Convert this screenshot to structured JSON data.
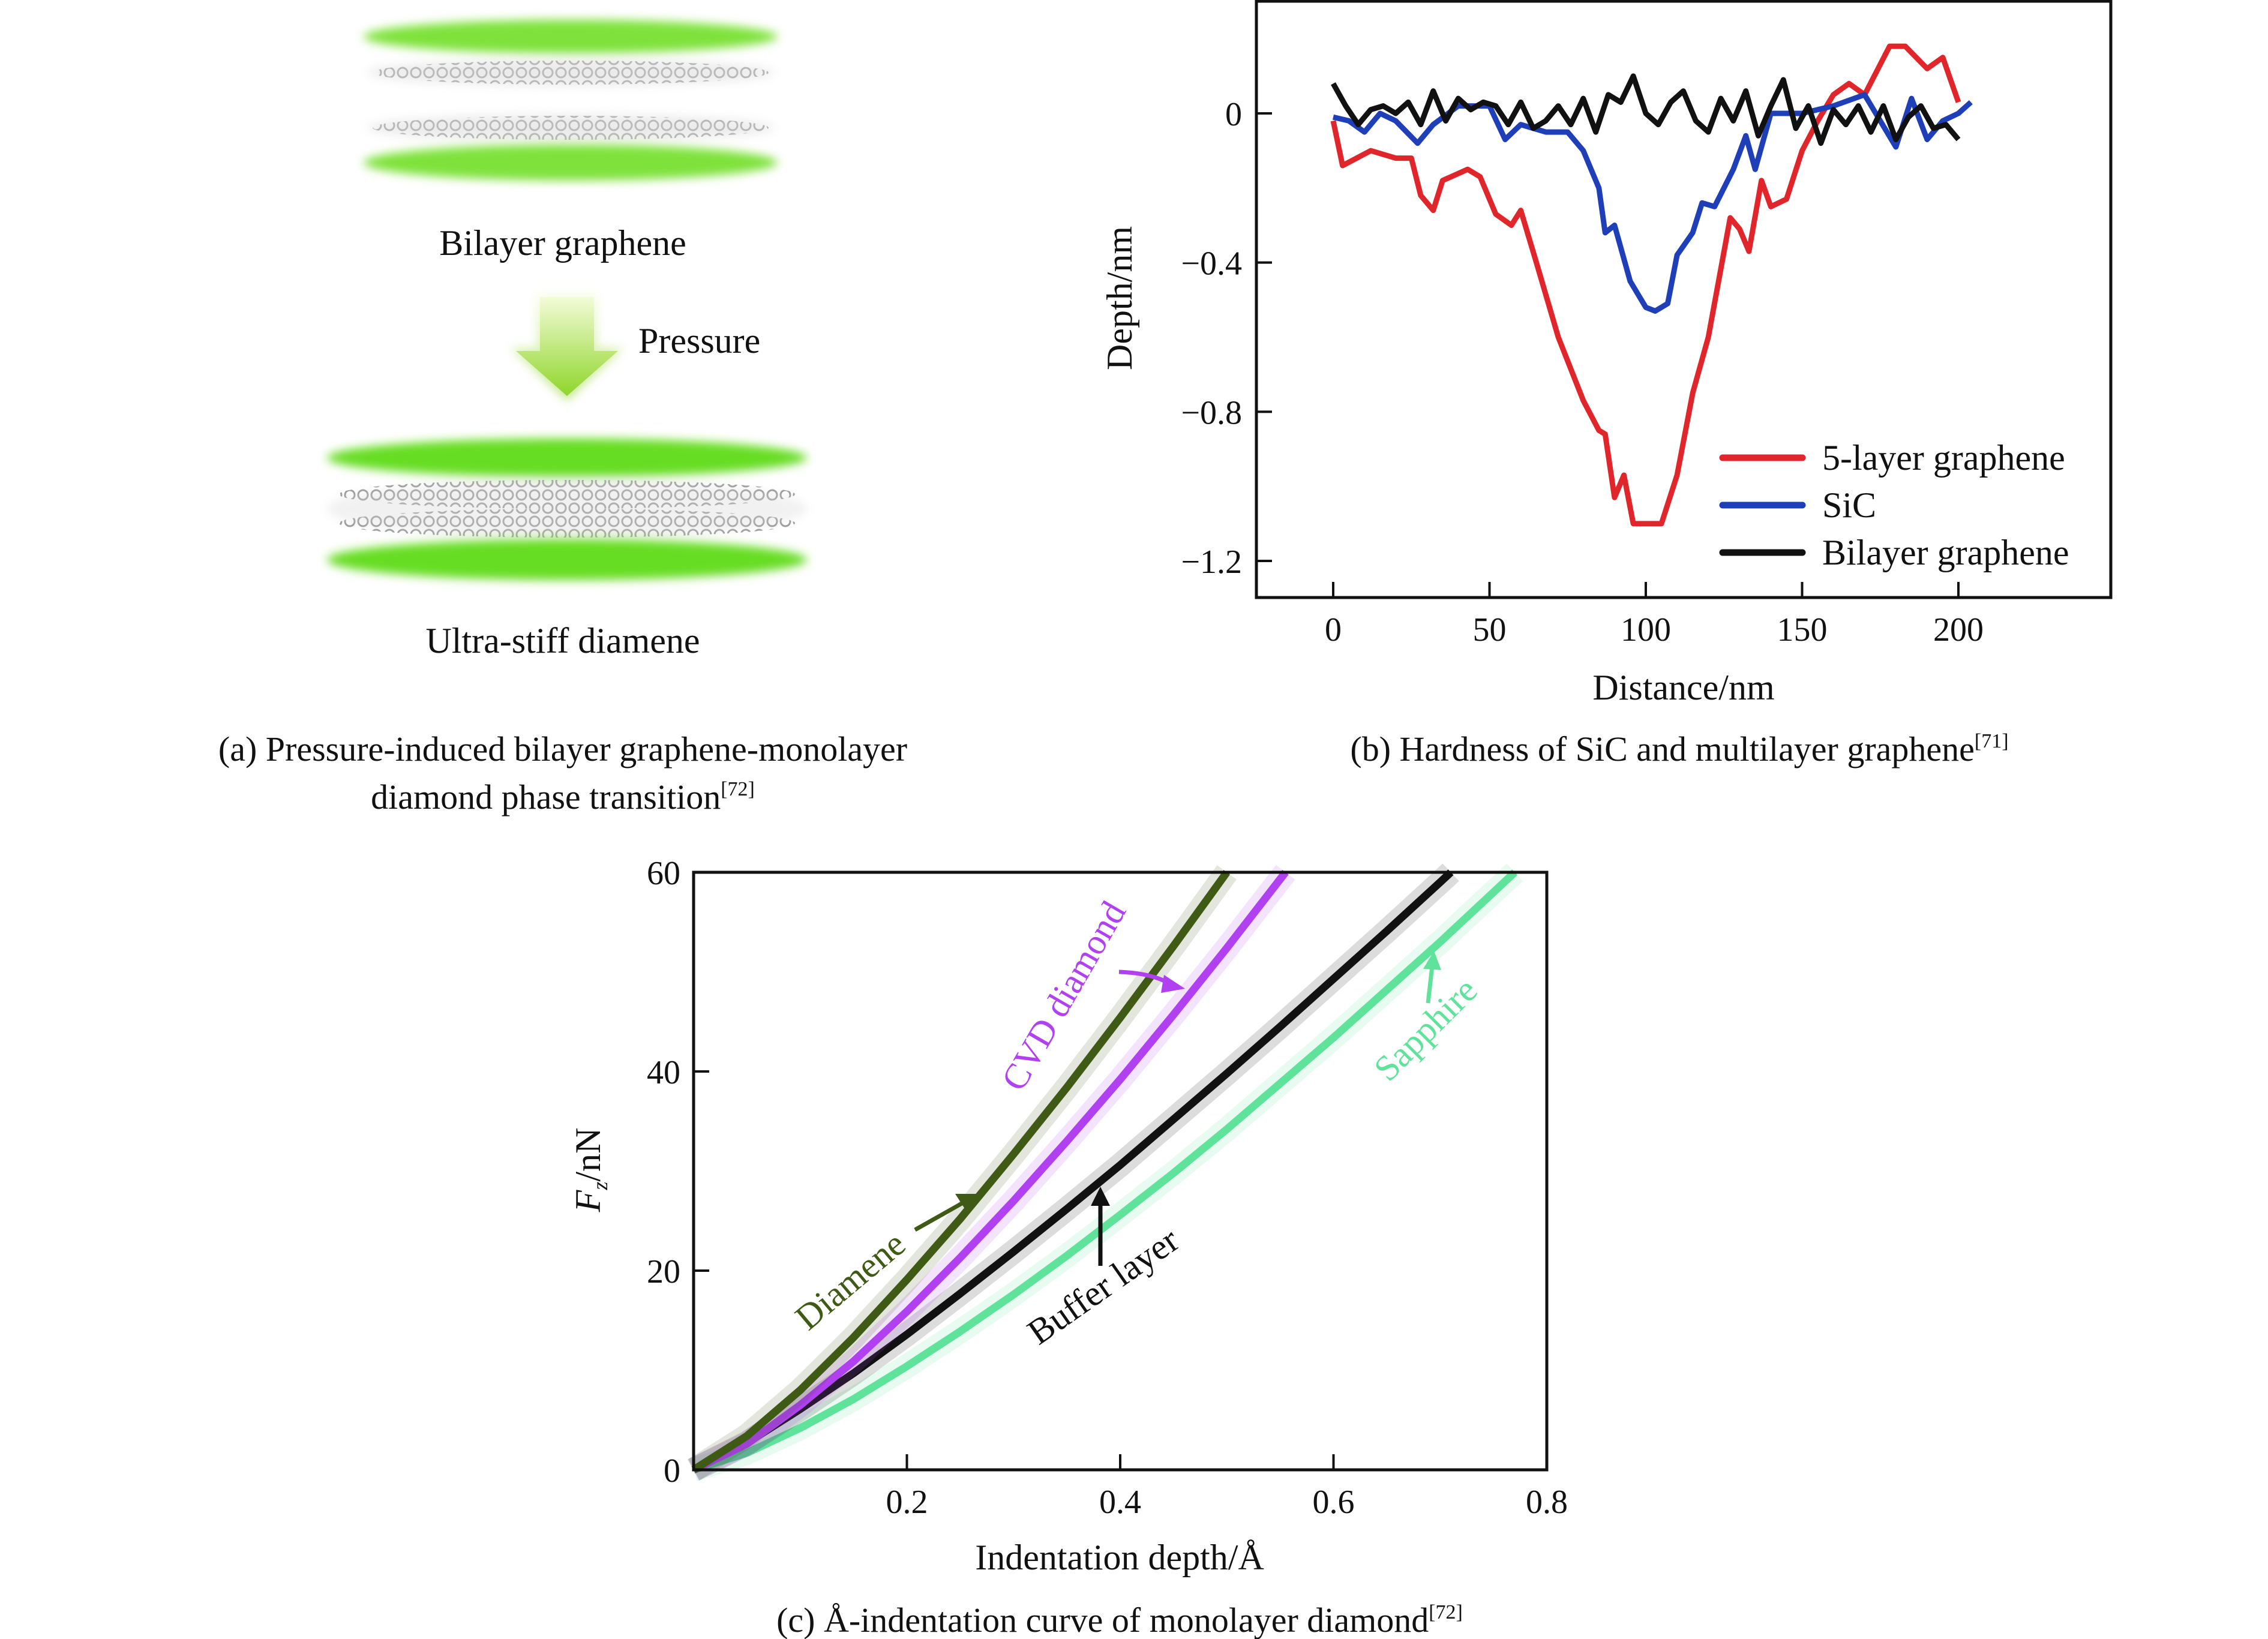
{
  "panel_a": {
    "top_label": "Bilayer graphene",
    "arrow_label": "Pressure",
    "bottom_label": "Ultra-stiff diamene",
    "caption_line1": "(a) Pressure-induced bilayer graphene-monolayer",
    "caption_line2": "diamond phase transition",
    "caption_ref": "[72]"
  },
  "chart_data": [
    {
      "type": "line",
      "panel": "b",
      "caption": "(b) Hardness of SiC and multilayer graphene",
      "caption_ref": "[71]",
      "xlabel": "Distance/nm",
      "ylabel": "Depth/nm",
      "xlim": [
        -25,
        250
      ],
      "ylim": [
        -1.33,
        0.25
      ],
      "xticks": [
        0,
        50,
        100,
        150,
        200
      ],
      "xtick_labels": [
        "0",
        "50",
        "100",
        "150",
        "200"
      ],
      "yticks": [
        0,
        -0.4,
        -0.8,
        -1.2
      ],
      "ytick_labels": [
        "0",
        "−0.4",
        "−0.8",
        "−1.2"
      ],
      "legend_position": "bottom-right",
      "series": [
        {
          "name": "5-layer graphene",
          "color": "#e0262b",
          "x": [
            0,
            3,
            12,
            20,
            25,
            28,
            32,
            35,
            43,
            47,
            52,
            57,
            60,
            65,
            72,
            80,
            85,
            87,
            90,
            93,
            96,
            100,
            105,
            110,
            115,
            120,
            127,
            130,
            133,
            137,
            140,
            145,
            150,
            155,
            160,
            165,
            170,
            178,
            183,
            190,
            195,
            200
          ],
          "y": [
            -0.02,
            -0.14,
            -0.1,
            -0.12,
            -0.12,
            -0.22,
            -0.26,
            -0.18,
            -0.15,
            -0.17,
            -0.27,
            -0.3,
            -0.26,
            -0.4,
            -0.6,
            -0.77,
            -0.85,
            -0.86,
            -1.03,
            -0.97,
            -1.1,
            -1.1,
            -1.1,
            -0.97,
            -0.75,
            -0.6,
            -0.28,
            -0.31,
            -0.37,
            -0.18,
            -0.25,
            -0.23,
            -0.1,
            -0.02,
            0.05,
            0.08,
            0.05,
            0.18,
            0.18,
            0.12,
            0.15,
            0.03
          ]
        },
        {
          "name": "SiC",
          "color": "#1f3fb8",
          "x": [
            0,
            5,
            10,
            15,
            20,
            27,
            32,
            40,
            50,
            55,
            60,
            68,
            75,
            80,
            85,
            87,
            90,
            95,
            100,
            103,
            107,
            110,
            115,
            118,
            122,
            128,
            132,
            135,
            140,
            150,
            160,
            170,
            180,
            185,
            190,
            195,
            200,
            204
          ],
          "y": [
            -0.01,
            -0.02,
            -0.05,
            0,
            -0.02,
            -0.08,
            -0.03,
            0.02,
            0.02,
            -0.07,
            -0.03,
            -0.05,
            -0.05,
            -0.1,
            -0.2,
            -0.32,
            -0.3,
            -0.45,
            -0.52,
            -0.53,
            -0.51,
            -0.38,
            -0.32,
            -0.24,
            -0.25,
            -0.15,
            -0.06,
            -0.15,
            0,
            0,
            0.02,
            0.05,
            -0.09,
            0.04,
            -0.07,
            -0.02,
            0.0,
            0.03
          ]
        },
        {
          "name": "Bilayer graphene",
          "color": "#111111",
          "x": [
            0,
            4,
            8,
            12,
            16,
            20,
            24,
            28,
            32,
            36,
            40,
            44,
            48,
            52,
            56,
            60,
            64,
            68,
            72,
            76,
            80,
            84,
            88,
            92,
            96,
            100,
            104,
            108,
            112,
            116,
            120,
            124,
            128,
            132,
            136,
            140,
            144,
            148,
            152,
            156,
            160,
            164,
            168,
            172,
            176,
            180,
            184,
            188,
            192,
            196,
            200
          ],
          "y": [
            0.08,
            0.02,
            -0.03,
            0.01,
            0.02,
            0,
            0.03,
            -0.03,
            0.06,
            -0.02,
            0.04,
            0.01,
            0.03,
            0.02,
            -0.03,
            0.03,
            -0.04,
            -0.02,
            0.02,
            -0.03,
            0.04,
            -0.05,
            0.05,
            0.03,
            0.1,
            0.0,
            -0.03,
            0.03,
            0.06,
            -0.02,
            -0.05,
            0.04,
            -0.02,
            0.06,
            -0.06,
            0.02,
            0.09,
            -0.04,
            0.02,
            -0.08,
            0.01,
            -0.03,
            0.02,
            -0.05,
            0.02,
            -0.07,
            -0.01,
            0.02,
            -0.04,
            -0.03,
            -0.07
          ]
        }
      ]
    },
    {
      "type": "line",
      "panel": "c",
      "caption": "(c) Å-indentation curve of monolayer diamond",
      "caption_ref": "[72]",
      "xlabel": "Indentation depth/Å",
      "ylabel_main": "F",
      "ylabel_sub": "z",
      "ylabel_unit": "/nN",
      "xlim": [
        0,
        0.8
      ],
      "ylim": [
        0,
        60
      ],
      "xticks": [
        0.2,
        0.4,
        0.6,
        0.8
      ],
      "xtick_labels": [
        "0.2",
        "0.4",
        "0.6",
        "0.8"
      ],
      "yticks": [
        0,
        20,
        40,
        60
      ],
      "ytick_labels": [
        "0",
        "20",
        "40",
        "60"
      ],
      "series": [
        {
          "name": "Sapphire",
          "color": "#5fe39a",
          "x": [
            0,
            0.05,
            0.1,
            0.15,
            0.2,
            0.25,
            0.3,
            0.35,
            0.4,
            0.45,
            0.5,
            0.55,
            0.6,
            0.65,
            0.7,
            0.75,
            0.77
          ],
          "y": [
            0,
            1.7,
            4.2,
            7.1,
            10.4,
            13.9,
            17.6,
            21.5,
            25.6,
            29.8,
            34.2,
            38.8,
            43.4,
            48.2,
            53.0,
            58.0,
            60
          ]
        },
        {
          "name": "Buffer layer",
          "color": "#111111",
          "x": [
            0,
            0.05,
            0.1,
            0.15,
            0.2,
            0.25,
            0.3,
            0.35,
            0.4,
            0.45,
            0.5,
            0.55,
            0.6,
            0.65,
            0.7,
            0.71
          ],
          "y": [
            0,
            2.7,
            6.1,
            9.7,
            13.6,
            17.7,
            21.9,
            26.2,
            30.6,
            35.2,
            39.8,
            44.5,
            49.3,
            54.1,
            59.0,
            60
          ]
        },
        {
          "name": "CVD diamond",
          "color": "#b040f0",
          "x": [
            0,
            0.05,
            0.1,
            0.15,
            0.2,
            0.25,
            0.3,
            0.35,
            0.4,
            0.45,
            0.5,
            0.555
          ],
          "y": [
            0,
            2.6,
            6.5,
            10.9,
            15.9,
            21.3,
            27.0,
            33.0,
            39.2,
            45.7,
            52.4,
            60
          ]
        },
        {
          "name": "Diamene",
          "color": "#3f5a14",
          "x": [
            0,
            0.05,
            0.1,
            0.15,
            0.2,
            0.25,
            0.3,
            0.35,
            0.4,
            0.45,
            0.5
          ],
          "y": [
            0,
            3.4,
            8.0,
            13.3,
            19.1,
            25.2,
            31.7,
            38.4,
            45.4,
            52.6,
            60
          ]
        }
      ]
    }
  ]
}
